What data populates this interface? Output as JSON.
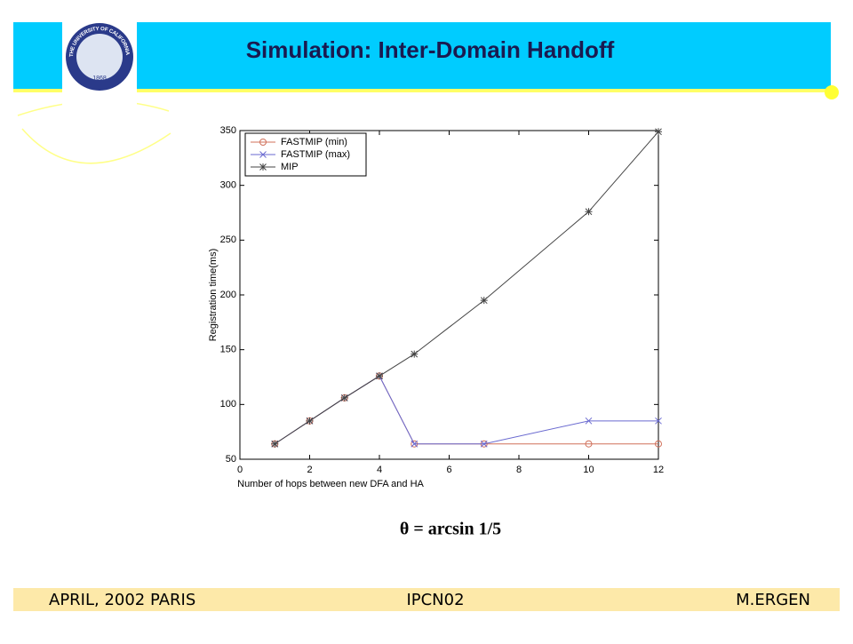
{
  "header": {
    "title": "Simulation: Inter-Domain Handoff"
  },
  "logo": {
    "text": "THE UNIVERSITY OF CALIFORNIA",
    "year": "1868"
  },
  "chart_data": {
    "type": "line",
    "x": [
      1,
      2,
      3,
      4,
      5,
      7,
      10,
      12
    ],
    "series": [
      {
        "name": "FASTMIP (min)",
        "color": "#d0705a",
        "marker": "circle",
        "values": [
          64,
          85,
          106,
          126,
          64,
          64,
          64,
          64
        ]
      },
      {
        "name": "FASTMIP (max)",
        "color": "#6a6ad0",
        "marker": "cross",
        "values": [
          64,
          85,
          106,
          126,
          64,
          64,
          85,
          85
        ]
      },
      {
        "name": "MIP",
        "color": "#444444",
        "marker": "star",
        "values": [
          64,
          85,
          106,
          126,
          146,
          195,
          276,
          349
        ]
      }
    ],
    "xlim": [
      0,
      12
    ],
    "ylim": [
      50,
      350
    ],
    "xticks": [
      0,
      2,
      4,
      6,
      8,
      10,
      12
    ],
    "yticks": [
      50,
      100,
      150,
      200,
      250,
      300,
      350
    ],
    "xlabel": "Number of hops between new DFA and HA",
    "ylabel": "Registration time(ms)",
    "legend": "upper-left",
    "grid": false
  },
  "caption": "θ = arcsin 1/5",
  "footer": {
    "left": "APRIL, 2002 PARIS",
    "center": "IPCN02",
    "right": "M.ERGEN"
  }
}
